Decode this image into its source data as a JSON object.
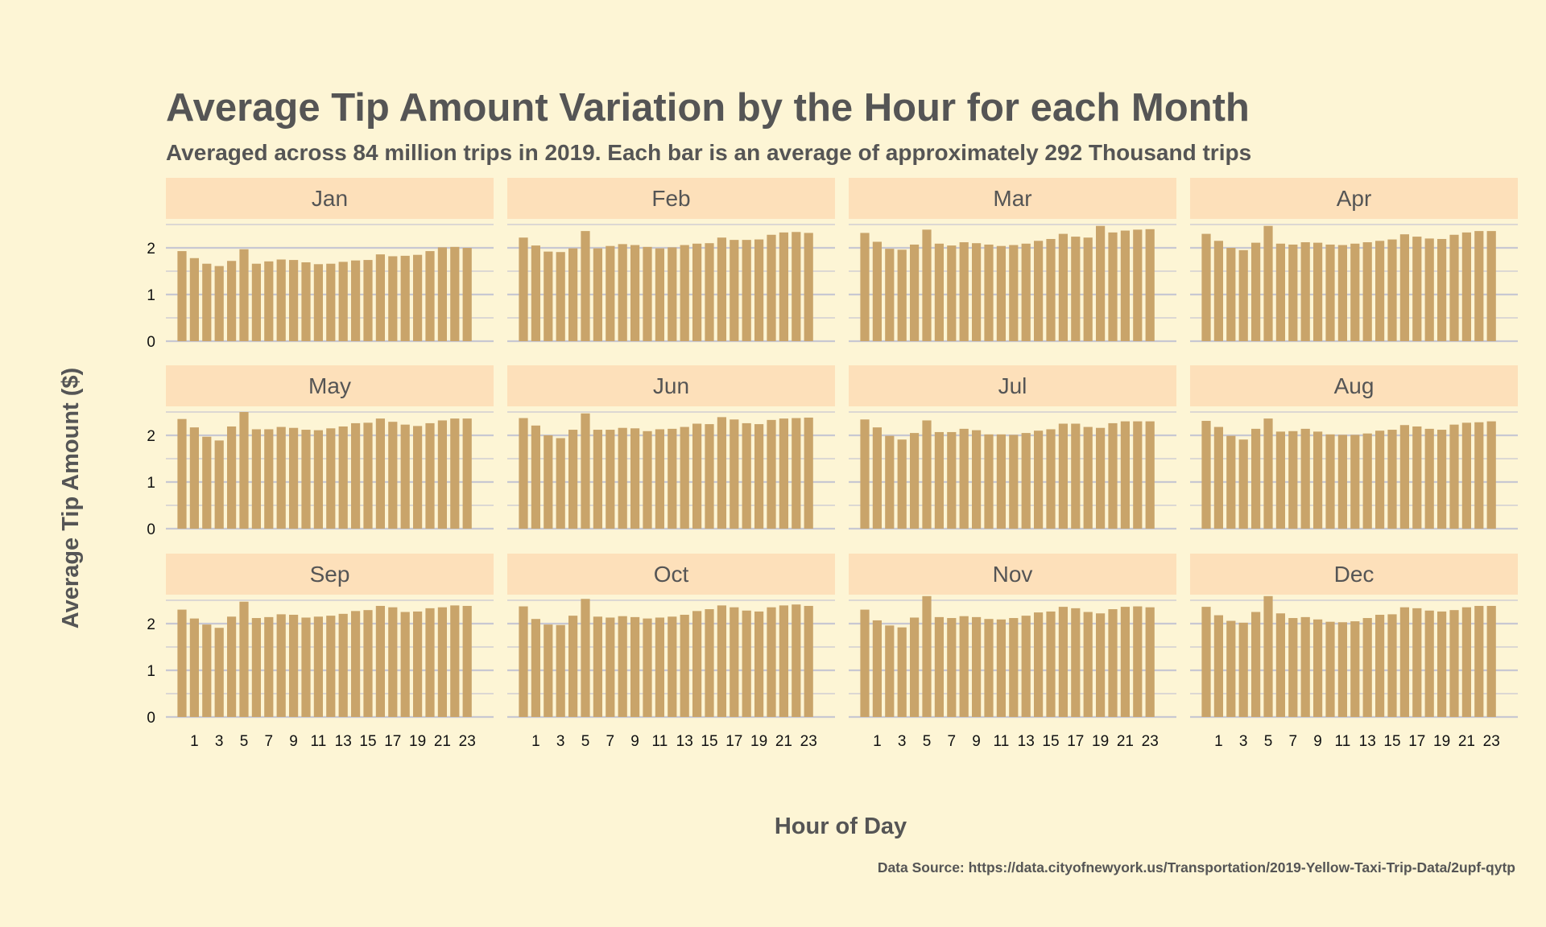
{
  "chart_data": {
    "type": "bar",
    "title": "Average Tip Amount Variation by the Hour for each Month",
    "subtitle": "Averaged across 84 million trips in 2019. Each bar is an average of approximately 292 Thousand trips",
    "xlabel": "Hour of Day",
    "ylabel": "Average Tip Amount ($)",
    "caption": "Data Source: https://data.cityofnewyork.us/Transportation/2019-Yellow-Taxi-Trip-Data/2upf-qytp",
    "x": [
      0,
      1,
      2,
      3,
      4,
      5,
      6,
      7,
      8,
      9,
      10,
      11,
      12,
      13,
      14,
      15,
      16,
      17,
      18,
      19,
      20,
      21,
      22,
      23
    ],
    "x_tick_labels": [
      "1",
      "3",
      "5",
      "7",
      "9",
      "11",
      "13",
      "15",
      "17",
      "19",
      "21",
      "23"
    ],
    "y_tick_labels": [
      "0",
      "1",
      "2"
    ],
    "ylim": [
      0,
      2.5
    ],
    "grid": true,
    "layout": "facet grid, 3 rows x 4 columns",
    "colors": {
      "background": "#fdf5d5",
      "bar": "#c9a46a",
      "strip": "#fde0ba",
      "gridline": "#c8c8d2",
      "text": "#555555"
    },
    "panels": [
      {
        "label": "Jan",
        "values": [
          1.93,
          1.78,
          1.66,
          1.61,
          1.72,
          1.97,
          1.66,
          1.71,
          1.75,
          1.74,
          1.69,
          1.65,
          1.66,
          1.7,
          1.73,
          1.74,
          1.86,
          1.82,
          1.83,
          1.85,
          1.93,
          2.01,
          2.02,
          2.0
        ]
      },
      {
        "label": "Feb",
        "values": [
          2.22,
          2.05,
          1.92,
          1.91,
          1.99,
          2.36,
          1.99,
          2.04,
          2.08,
          2.06,
          2.02,
          1.99,
          2.01,
          2.06,
          2.09,
          2.1,
          2.22,
          2.17,
          2.17,
          2.18,
          2.28,
          2.33,
          2.34,
          2.32
        ]
      },
      {
        "label": "Mar",
        "values": [
          2.32,
          2.13,
          1.98,
          1.96,
          2.07,
          2.39,
          2.09,
          2.05,
          2.12,
          2.1,
          2.07,
          2.04,
          2.06,
          2.09,
          2.15,
          2.19,
          2.3,
          2.24,
          2.22,
          2.47,
          2.33,
          2.37,
          2.39,
          2.4
        ]
      },
      {
        "label": "Apr",
        "values": [
          2.3,
          2.15,
          2.0,
          1.95,
          2.11,
          2.47,
          2.09,
          2.07,
          2.12,
          2.11,
          2.07,
          2.06,
          2.09,
          2.12,
          2.15,
          2.18,
          2.29,
          2.24,
          2.2,
          2.19,
          2.28,
          2.33,
          2.36,
          2.36
        ]
      },
      {
        "label": "May",
        "values": [
          2.35,
          2.17,
          1.97,
          1.89,
          2.19,
          2.5,
          2.13,
          2.13,
          2.18,
          2.16,
          2.12,
          2.11,
          2.15,
          2.19,
          2.26,
          2.27,
          2.36,
          2.29,
          2.23,
          2.2,
          2.26,
          2.32,
          2.36,
          2.36
        ]
      },
      {
        "label": "Jun",
        "values": [
          2.37,
          2.21,
          2.0,
          1.94,
          2.12,
          2.47,
          2.12,
          2.12,
          2.16,
          2.15,
          2.09,
          2.13,
          2.14,
          2.18,
          2.25,
          2.24,
          2.39,
          2.34,
          2.26,
          2.24,
          2.33,
          2.36,
          2.37,
          2.38
        ]
      },
      {
        "label": "Jul",
        "values": [
          2.34,
          2.17,
          1.99,
          1.91,
          2.05,
          2.32,
          2.07,
          2.07,
          2.14,
          2.11,
          2.02,
          2.02,
          2.01,
          2.05,
          2.1,
          2.13,
          2.25,
          2.25,
          2.18,
          2.16,
          2.26,
          2.3,
          2.3,
          2.3
        ]
      },
      {
        "label": "Aug",
        "values": [
          2.31,
          2.18,
          1.99,
          1.91,
          2.14,
          2.36,
          2.08,
          2.09,
          2.14,
          2.08,
          2.02,
          2.01,
          2.01,
          2.04,
          2.1,
          2.12,
          2.22,
          2.19,
          2.14,
          2.12,
          2.23,
          2.27,
          2.28,
          2.3
        ]
      },
      {
        "label": "Sep",
        "values": [
          2.3,
          2.11,
          1.98,
          1.91,
          2.15,
          2.47,
          2.12,
          2.14,
          2.2,
          2.19,
          2.13,
          2.15,
          2.17,
          2.21,
          2.27,
          2.29,
          2.38,
          2.35,
          2.25,
          2.26,
          2.33,
          2.35,
          2.39,
          2.38
        ]
      },
      {
        "label": "Oct",
        "values": [
          2.37,
          2.1,
          1.98,
          1.97,
          2.17,
          2.53,
          2.15,
          2.13,
          2.16,
          2.14,
          2.11,
          2.13,
          2.15,
          2.19,
          2.27,
          2.31,
          2.39,
          2.35,
          2.28,
          2.26,
          2.35,
          2.39,
          2.41,
          2.38
        ]
      },
      {
        "label": "Nov",
        "values": [
          2.3,
          2.07,
          1.96,
          1.92,
          2.13,
          2.59,
          2.14,
          2.12,
          2.16,
          2.14,
          2.1,
          2.09,
          2.12,
          2.17,
          2.24,
          2.26,
          2.36,
          2.33,
          2.25,
          2.22,
          2.31,
          2.36,
          2.37,
          2.35
        ]
      },
      {
        "label": "Dec",
        "values": [
          2.36,
          2.18,
          2.06,
          2.02,
          2.25,
          2.59,
          2.22,
          2.12,
          2.14,
          2.09,
          2.04,
          2.03,
          2.05,
          2.12,
          2.19,
          2.2,
          2.35,
          2.33,
          2.28,
          2.26,
          2.29,
          2.35,
          2.38,
          2.38
        ]
      }
    ]
  }
}
